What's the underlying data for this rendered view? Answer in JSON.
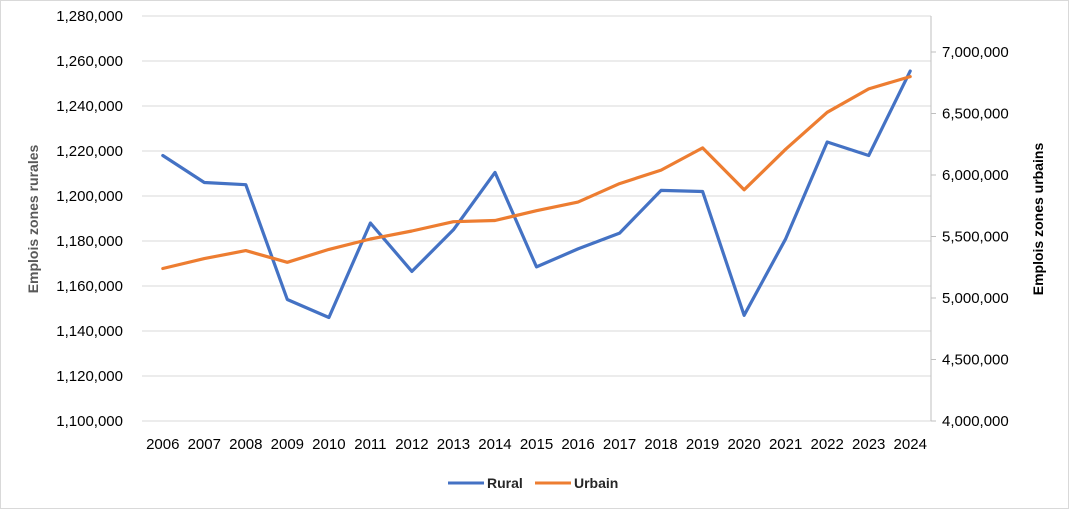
{
  "chart_data": {
    "type": "line",
    "categories": [
      "2006",
      "2007",
      "2008",
      "2009",
      "2010",
      "2011",
      "2012",
      "2013",
      "2014",
      "2015",
      "2016",
      "2017",
      "2018",
      "2019",
      "2020",
      "2021",
      "2022",
      "2023",
      "2024"
    ],
    "series": [
      {
        "name": "Rural",
        "axis": "left",
        "color": "#4472C4",
        "values": [
          1218000,
          1206000,
          1205000,
          1154000,
          1146000,
          1188000,
          1166500,
          1185000,
          1210500,
          1168500,
          1176500,
          1183500,
          1202500,
          1202000,
          1147000,
          1181000,
          1224000,
          1218000,
          1255500
        ]
      },
      {
        "name": "Urbain",
        "axis": "right",
        "color": "#ED7D31",
        "values": [
          5240000,
          5320000,
          5385000,
          5290000,
          5395000,
          5480000,
          5545000,
          5620000,
          5630000,
          5710000,
          5780000,
          5930000,
          6040000,
          6220000,
          5880000,
          6210000,
          6510000,
          6700000,
          6800000
        ]
      }
    ],
    "y_left": {
      "label": "Emplois zones rurales",
      "min": 1100000,
      "max": 1280000,
      "step": 20000,
      "ticks": [
        "1,100,000",
        "1,120,000",
        "1,140,000",
        "1,160,000",
        "1,180,000",
        "1,200,000",
        "1,220,000",
        "1,240,000",
        "1,260,000",
        "1,280,000"
      ]
    },
    "y_right": {
      "label": "Emplois zones urbains",
      "min": 4000000,
      "max": 7000000,
      "step": 500000,
      "ticks": [
        "4,000,000",
        "4,500,000",
        "5,000,000",
        "5,500,000",
        "6,000,000",
        "6,500,000",
        "7,000,000"
      ]
    },
    "grid": "horizontal",
    "legend": "bottom-center"
  }
}
